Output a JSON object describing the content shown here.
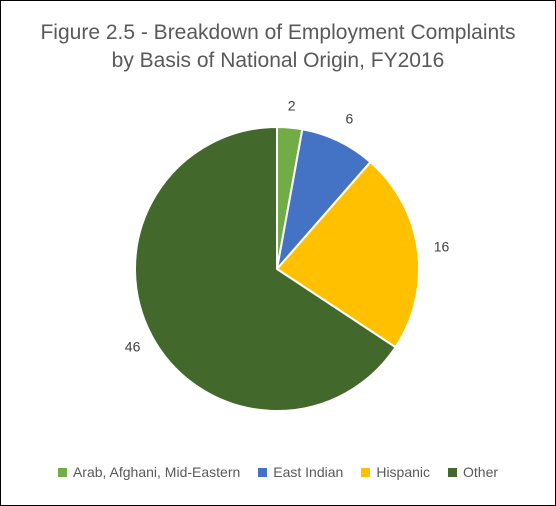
{
  "chart_data": {
    "type": "pie",
    "title_lines": [
      "Figure 2.5 - Breakdown of Employment Complaints",
      "by Basis of National Origin, FY2016"
    ],
    "categories": [
      "Arab, Afghani, Mid-Eastern",
      "East Indian",
      "Hispanic",
      "Other"
    ],
    "values": [
      2,
      6,
      16,
      46
    ],
    "data_labels": [
      "2",
      "6",
      "16",
      "46"
    ],
    "colors": [
      "#70AD47",
      "#4472C4",
      "#FFC000",
      "#43682B"
    ],
    "start_angle": "12 o'clock",
    "direction": "clockwise",
    "legend_position": "bottom"
  }
}
